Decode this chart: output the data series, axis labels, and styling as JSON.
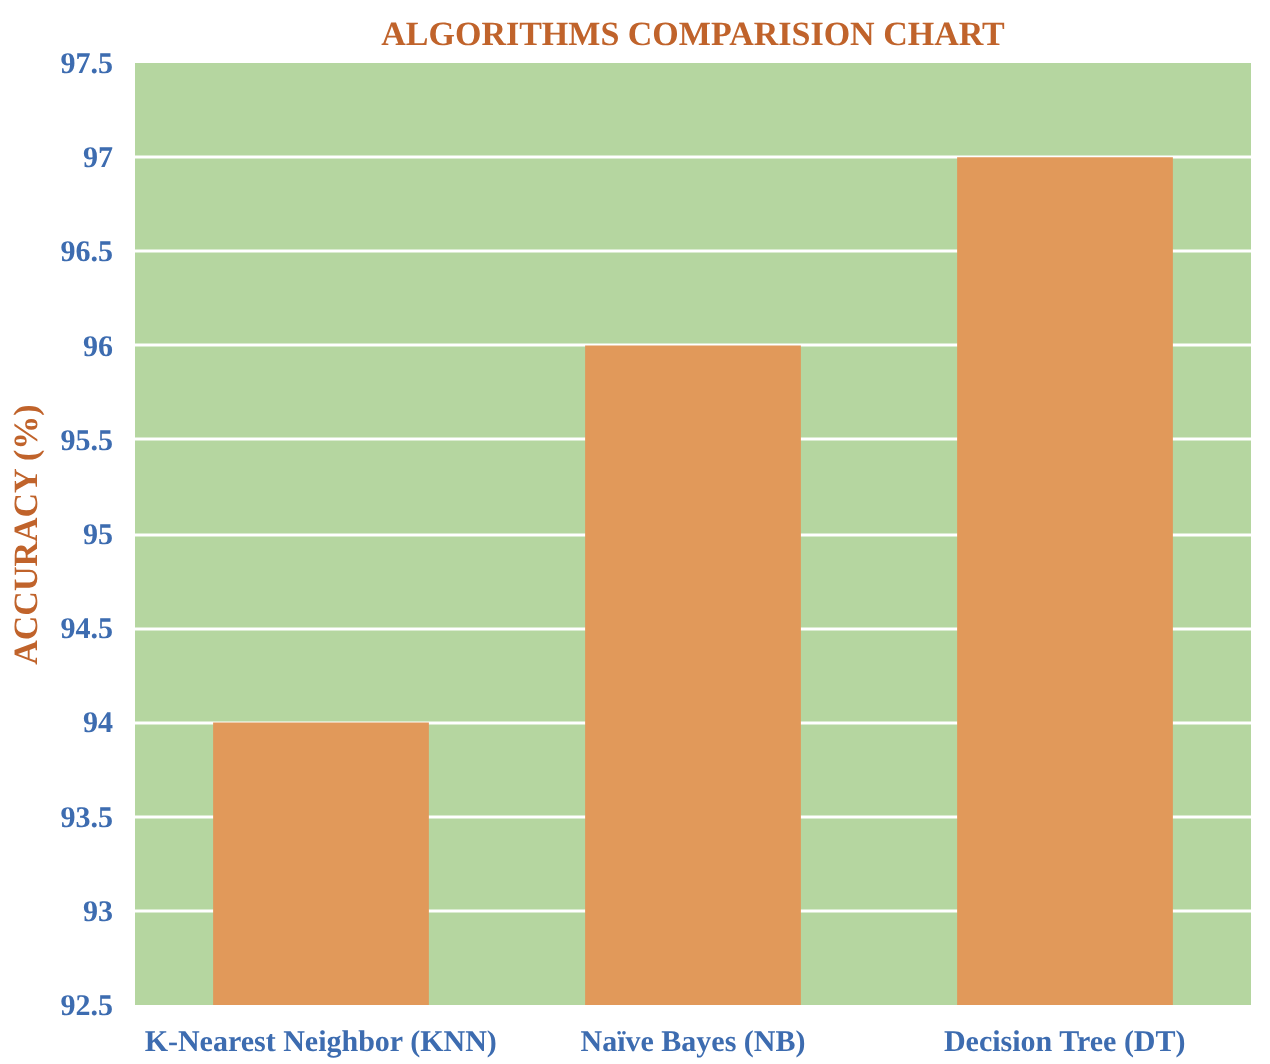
{
  "chart_data": {
    "type": "bar",
    "title": "ALGORITHMS COMPARISION CHART",
    "ylabel": "ACCURACY (%)",
    "categories": [
      "K-Nearest Neighbor (KNN)",
      "Naïve Bayes (NB)",
      "Decision Tree (DT)"
    ],
    "values": [
      94,
      96,
      97
    ],
    "color": "#e1995a",
    "ylim": [
      92.5,
      97.5
    ],
    "yticks": [
      92.5,
      93,
      93.5,
      94,
      94.5,
      95,
      95.5,
      96,
      96.5,
      97,
      97.5
    ],
    "grid": "y"
  }
}
